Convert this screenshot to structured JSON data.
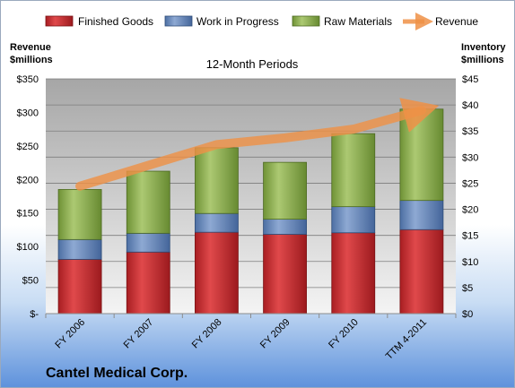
{
  "chart_data": {
    "type": "bar",
    "subtitle": "12-Month Periods",
    "company": "Cantel Medical Corp.",
    "categories": [
      "FY 2006",
      "FY 2007",
      "FY 2008",
      "FY 2009",
      "FY 2010",
      "TTM 4-2011"
    ],
    "left_axis": {
      "label_line1": "Revenue",
      "label_line2": "$millions",
      "ylim": [
        0,
        350
      ],
      "ticks": [
        {
          "value": 0,
          "label": "$-"
        },
        {
          "value": 50,
          "label": "$50"
        },
        {
          "value": 100,
          "label": "$100"
        },
        {
          "value": 150,
          "label": "$150"
        },
        {
          "value": 200,
          "label": "$200"
        },
        {
          "value": 250,
          "label": "$250"
        },
        {
          "value": 300,
          "label": "$300"
        },
        {
          "value": 350,
          "label": "$350"
        }
      ]
    },
    "right_axis": {
      "label_line1": "Inventory",
      "label_line2": "$millions",
      "ylim": [
        0,
        45
      ],
      "ticks": [
        {
          "value": 0,
          "label": "$0"
        },
        {
          "value": 5,
          "label": "$5"
        },
        {
          "value": 10,
          "label": "$10"
        },
        {
          "value": 15,
          "label": "$15"
        },
        {
          "value": 20,
          "label": "$20"
        },
        {
          "value": 25,
          "label": "$25"
        },
        {
          "value": 30,
          "label": "$30"
        },
        {
          "value": 35,
          "label": "$35"
        },
        {
          "value": 40,
          "label": "$40"
        },
        {
          "value": 45,
          "label": "$45"
        }
      ]
    },
    "series": [
      {
        "name": "Finished Goods",
        "axis": "right",
        "stacked": true,
        "color": "#c0282c",
        "values": [
          10.4,
          11.8,
          15.6,
          15.2,
          15.5,
          16.1
        ]
      },
      {
        "name": "Work in Progress",
        "axis": "right",
        "stacked": true,
        "color": "#5f82b6",
        "values": [
          3.8,
          3.6,
          3.6,
          2.9,
          5.0,
          5.6
        ]
      },
      {
        "name": "Raw Materials",
        "axis": "right",
        "stacked": true,
        "color": "#8cb04e",
        "values": [
          9.6,
          11.9,
          12.6,
          10.9,
          14.0,
          17.5
        ]
      },
      {
        "name": "Revenue",
        "axis": "left",
        "type": "line",
        "color": "#ee9147",
        "values": [
          190,
          221,
          252,
          262,
          275,
          303
        ]
      }
    ],
    "legend_position": "top",
    "grid": true
  }
}
